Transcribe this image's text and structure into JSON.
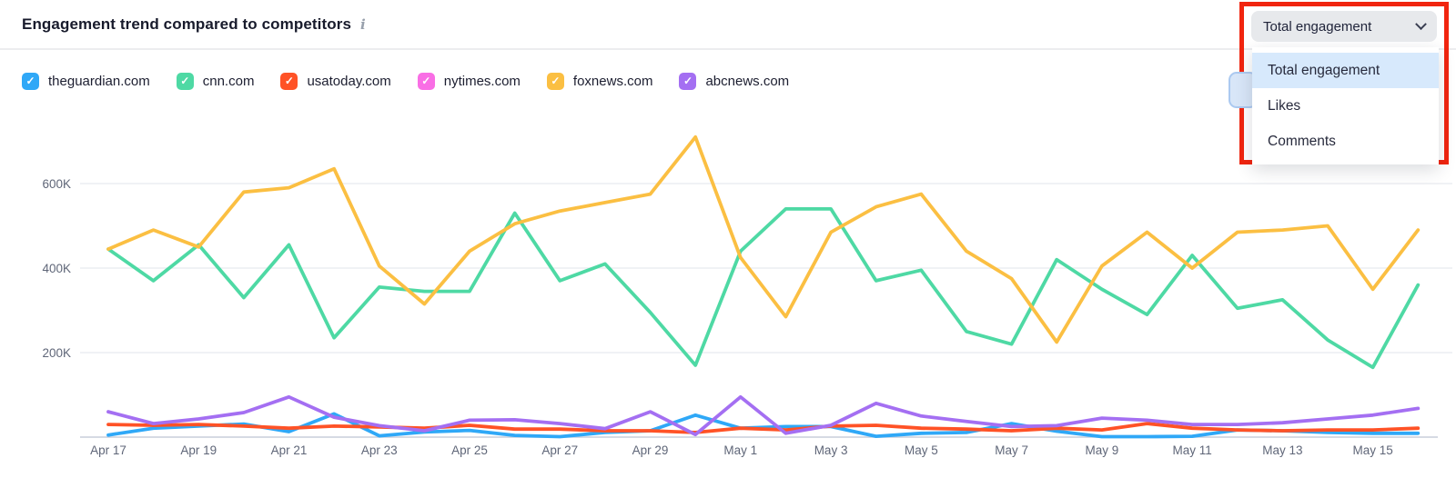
{
  "header": {
    "title": "Engagement trend compared to competitors",
    "info_icon": "i"
  },
  "legend": {
    "items": [
      {
        "label": "theguardian.com",
        "color": "#2FA8F7",
        "checked": true
      },
      {
        "label": "cnn.com",
        "color": "#4ED9A4",
        "checked": true
      },
      {
        "label": "usatoday.com",
        "color": "#FF5226",
        "checked": true
      },
      {
        "label": "nytimes.com",
        "color": "#F96EE5",
        "checked": true
      },
      {
        "label": "foxnews.com",
        "color": "#FBBF42",
        "checked": true
      },
      {
        "label": "abcnews.com",
        "color": "#A46FF2",
        "checked": true
      }
    ],
    "check_glyph": "✓"
  },
  "dropdown": {
    "selected": "Total engagement",
    "options": [
      "Total engagement",
      "Likes",
      "Comments"
    ],
    "highlight_color": "#D7E9FC",
    "annotation_color": "#F1250F"
  },
  "chart_data": {
    "type": "line",
    "unit": "thousands (K) of engagements",
    "x": [
      "Apr 17",
      "Apr 18",
      "Apr 19",
      "Apr 20",
      "Apr 21",
      "Apr 22",
      "Apr 23",
      "Apr 24",
      "Apr 25",
      "Apr 26",
      "Apr 27",
      "Apr 28",
      "Apr 29",
      "Apr 30",
      "May 1",
      "May 2",
      "May 3",
      "May 4",
      "May 5",
      "May 6",
      "May 7",
      "May 8",
      "May 9",
      "May 10",
      "May 11",
      "May 12",
      "May 13",
      "May 14",
      "May 15",
      "May 16"
    ],
    "x_axis_labels": [
      "Apr 17",
      "Apr 19",
      "Apr 21",
      "Apr 23",
      "Apr 25",
      "Apr 27",
      "Apr 29",
      "May 1",
      "May 3",
      "May 5",
      "May 7",
      "May 9",
      "May 11",
      "May 13",
      "May 15"
    ],
    "y_ticks": [
      {
        "label": "200K",
        "value": 200
      },
      {
        "label": "400K",
        "value": 400
      },
      {
        "label": "600K",
        "value": 600
      }
    ],
    "ylim": [
      0,
      750
    ],
    "grid": "horizontal",
    "legend_position": "top",
    "series": [
      {
        "name": "theguardian.com",
        "color": "#2FA8F7",
        "visible": true,
        "values": [
          5,
          21,
          26,
          31,
          13,
          55,
          3,
          12,
          16,
          4,
          1,
          11,
          15,
          52,
          21,
          25,
          25,
          2,
          9,
          11,
          32,
          14,
          1,
          1,
          2,
          17,
          15,
          11,
          9,
          9
        ]
      },
      {
        "name": "usatoday.com",
        "color": "#FF5226",
        "visible": true,
        "values": [
          30,
          28,
          30,
          26,
          21,
          26,
          24,
          21,
          28,
          19,
          19,
          15,
          15,
          11,
          21,
          17,
          26,
          28,
          21,
          19,
          15,
          21,
          17,
          32,
          21,
          17,
          15,
          17,
          17,
          21
        ]
      },
      {
        "name": "abcnews.com",
        "color": "#A46FF2",
        "visible": true,
        "values": [
          60,
          32,
          43,
          58,
          95,
          47,
          27,
          15,
          40,
          41,
          32,
          20,
          60,
          6,
          95,
          9,
          28,
          80,
          50,
          37,
          25,
          27,
          45,
          40,
          30,
          30,
          34,
          43,
          52,
          68
        ]
      },
      {
        "name": "cnn.com",
        "color": "#4ED9A4",
        "visible": true,
        "values": [
          445,
          370,
          455,
          330,
          455,
          235,
          355,
          345,
          345,
          530,
          370,
          410,
          295,
          170,
          440,
          540,
          540,
          370,
          395,
          250,
          220,
          420,
          350,
          290,
          430,
          305,
          325,
          230,
          165,
          360
        ]
      },
      {
        "name": "foxnews.com",
        "color": "#FBBF42",
        "visible": true,
        "values": [
          445,
          490,
          450,
          580,
          590,
          635,
          405,
          315,
          440,
          505,
          535,
          555,
          575,
          710,
          425,
          285,
          485,
          545,
          575,
          440,
          375,
          225,
          405,
          485,
          400,
          485,
          490,
          500,
          350,
          490
        ]
      },
      {
        "name": "nytimes.com",
        "color": "#F96EE5",
        "visible": false,
        "values": []
      }
    ]
  },
  "colors": {
    "gridline": "#ECEEF2",
    "baseline": "#C9CEDA",
    "axis_text": "#5F6678"
  }
}
